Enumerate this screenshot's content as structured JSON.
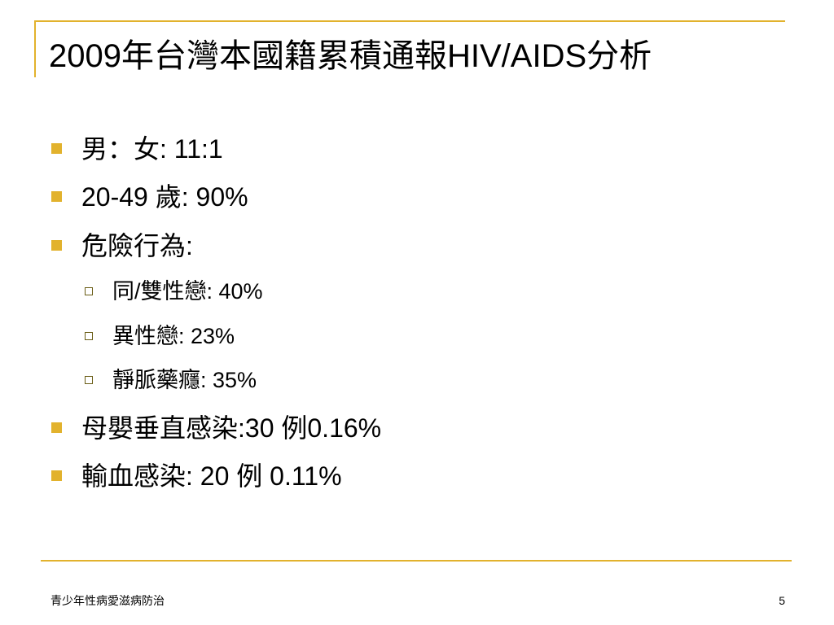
{
  "slide": {
    "title": "2009年台灣本國籍累積通報HIV/AIDS分析",
    "bullets": [
      {
        "text": "男：女: 11:1",
        "level": 1
      },
      {
        "text": "20-49 歲: 90%",
        "level": 1
      },
      {
        "text": "危險行為:",
        "level": 1
      },
      {
        "text": "同/雙性戀: 40%",
        "level": 2
      },
      {
        "text": "異性戀: 23%",
        "level": 2
      },
      {
        "text": "靜脈藥癮: 35%",
        "level": 2
      },
      {
        "text": "母嬰垂直感染:30 例0.16%",
        "level": 1
      },
      {
        "text": "輸血感染: 20 例 0.11%",
        "level": 1
      }
    ]
  },
  "footer": {
    "text": "青少年性病愛滋病防治",
    "page_number": "5"
  },
  "colors": {
    "accent": "#e2b22d",
    "text": "#000000",
    "background": "#ffffff"
  },
  "icons": {
    "level1_marker": "filled-square-bullet-icon",
    "level2_marker": "hollow-square-bullet-icon"
  }
}
